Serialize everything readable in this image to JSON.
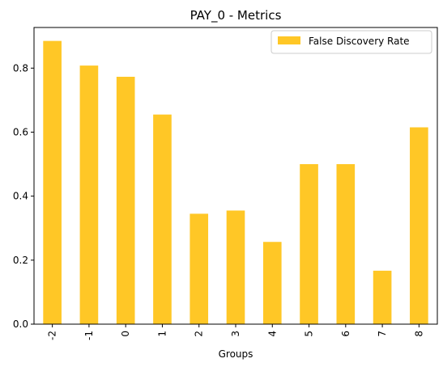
{
  "chart_data": {
    "type": "bar",
    "title": "PAY_0 - Metrics",
    "xlabel": "Groups",
    "ylabel": "",
    "categories": [
      "-2",
      "-1",
      "0",
      "1",
      "2",
      "3",
      "4",
      "5",
      "6",
      "7",
      "8"
    ],
    "series": [
      {
        "name": "False Discovery Rate",
        "values": [
          0.885,
          0.808,
          0.773,
          0.655,
          0.345,
          0.355,
          0.257,
          0.5,
          0.5,
          0.167,
          0.615
        ],
        "color": "#FFC726"
      }
    ],
    "ylim": [
      0,
      0.927
    ],
    "yticks": [
      "0.0",
      "0.2",
      "0.4",
      "0.6",
      "0.8"
    ],
    "legend_position": "top-right",
    "grid": false
  }
}
